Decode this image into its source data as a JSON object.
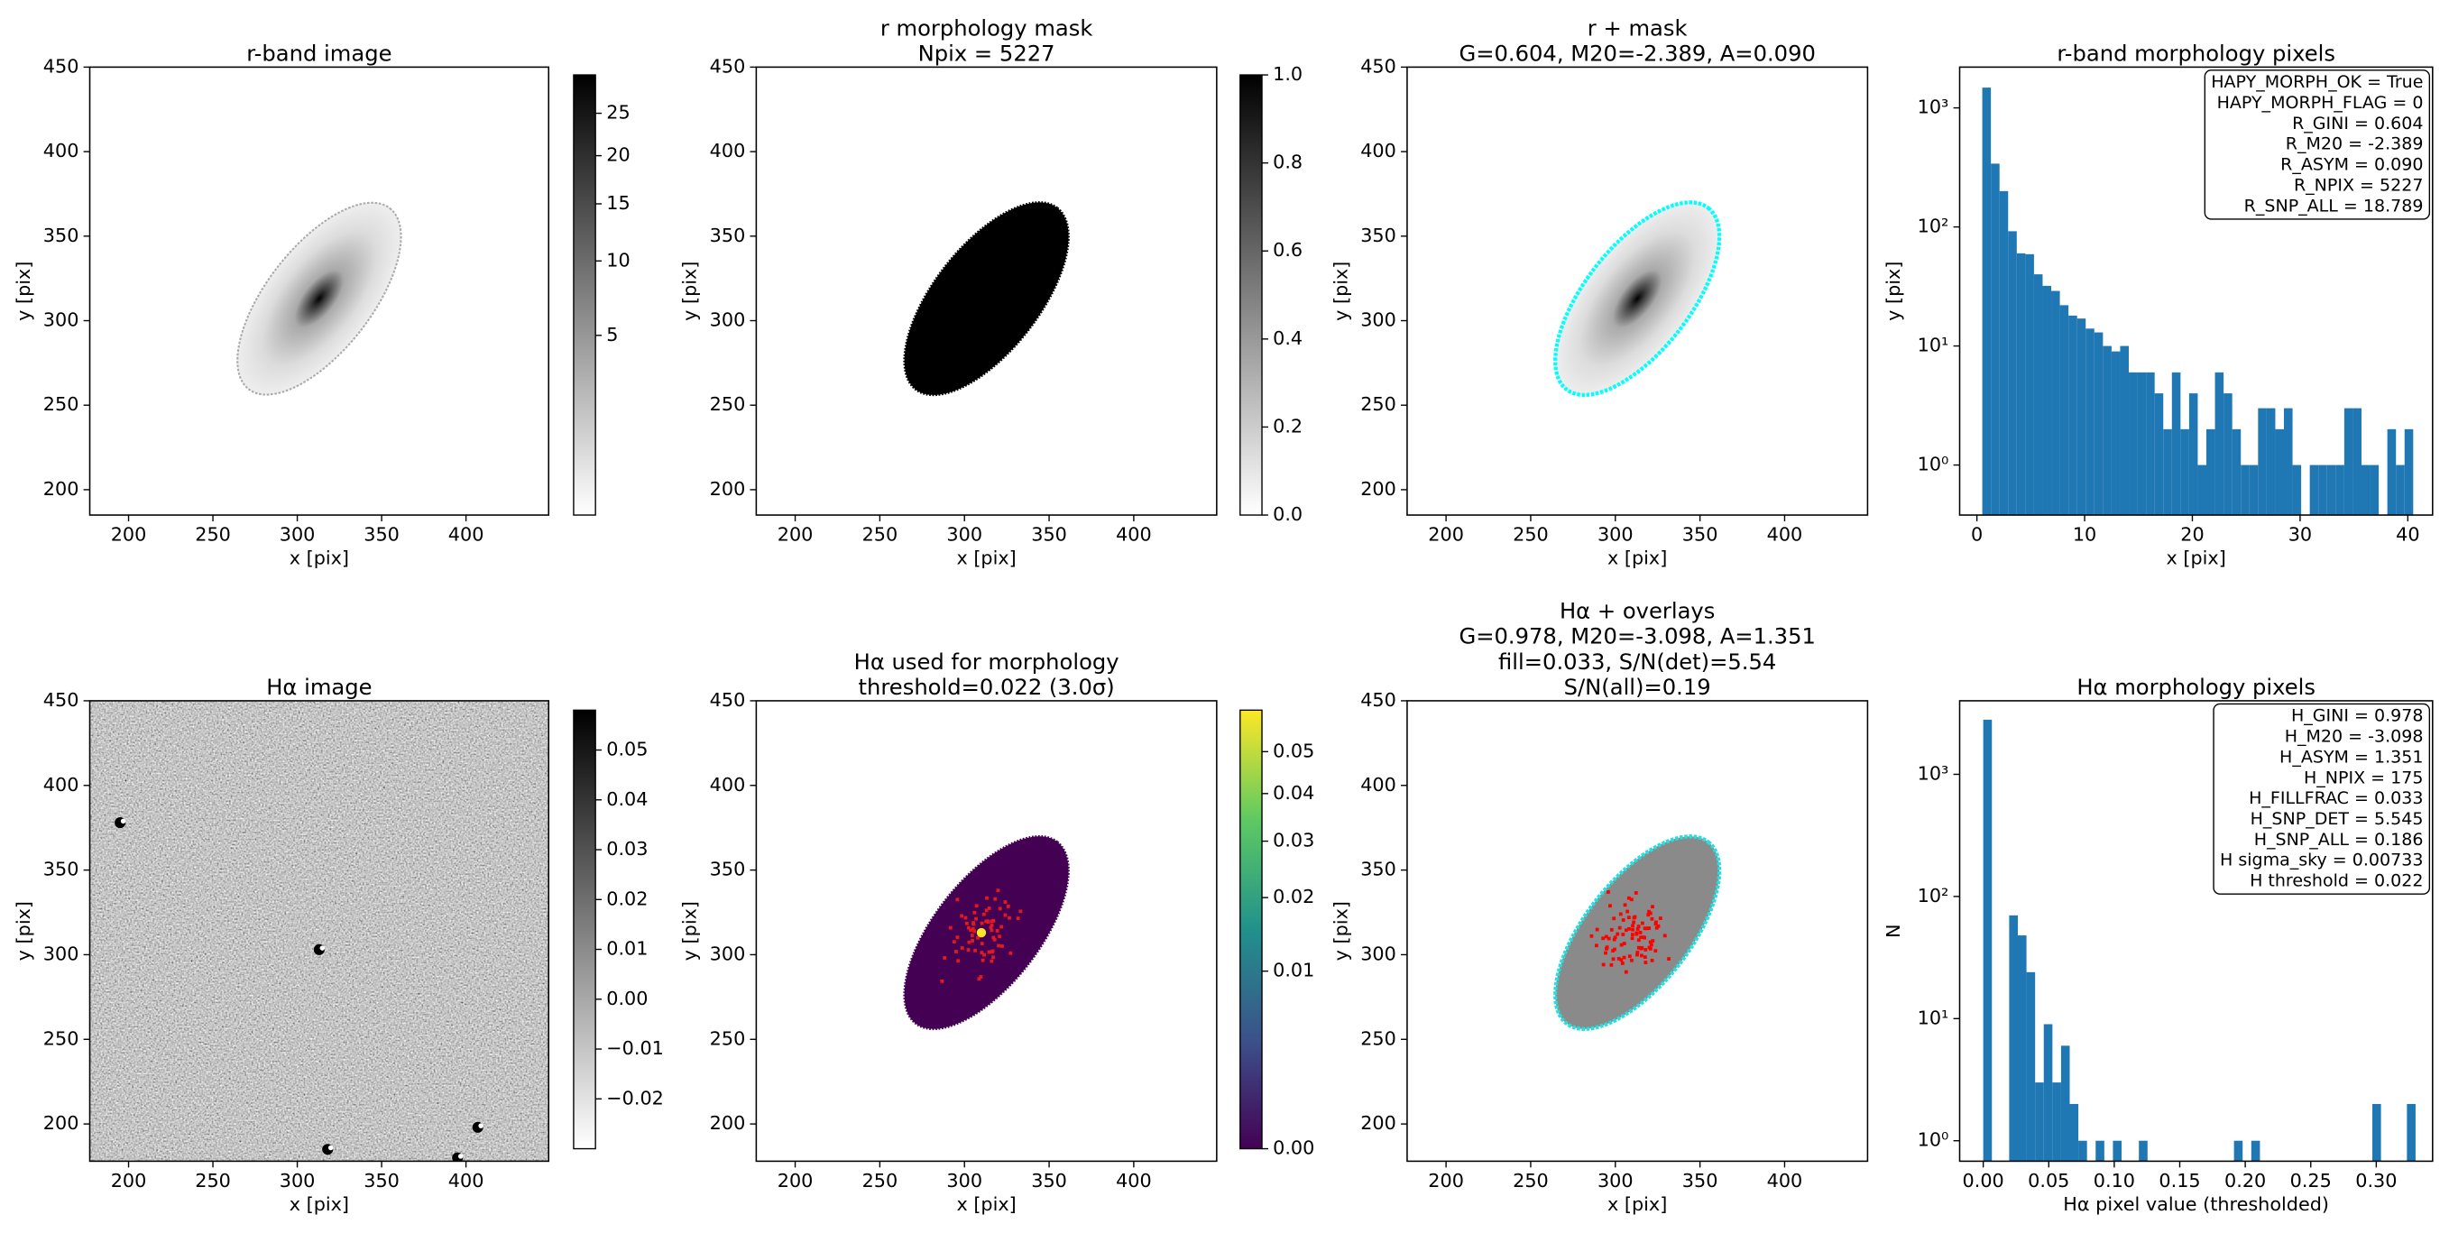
{
  "chart_data": [
    {
      "type": "image",
      "title": [
        "r-band image"
      ],
      "xlabel": "x [pix]",
      "ylabel": "y [pix]",
      "xlim": [
        177,
        449
      ],
      "ylim": [
        185,
        450
      ],
      "xticks": [
        200,
        250,
        300,
        350,
        400
      ],
      "yticks": [
        200,
        250,
        300,
        350,
        400,
        450
      ],
      "colorbar": {
        "cmap": "gray_r",
        "scale": "sqrt",
        "clim": [
          0,
          30
        ],
        "ticks": [
          5,
          10,
          15,
          20,
          25
        ]
      }
    },
    {
      "type": "image",
      "title": [
        "r morphology mask",
        "Npix = 5227"
      ],
      "xlabel": "x [pix]",
      "ylabel": "y [pix]",
      "xlim": [
        177,
        449
      ],
      "ylim": [
        185,
        450
      ],
      "xticks": [
        200,
        250,
        300,
        350,
        400
      ],
      "yticks": [
        200,
        250,
        300,
        350,
        400,
        450
      ],
      "colorbar": {
        "cmap": "gray_r",
        "scale": "linear",
        "clim": [
          0,
          1
        ],
        "ticks": [
          {
            "value": 0,
            "label": "0.0"
          },
          {
            "value": 0.2,
            "label": "0.2"
          },
          {
            "value": 0.4,
            "label": "0.4"
          },
          {
            "value": 0.6,
            "label": "0.6"
          },
          {
            "value": 0.8,
            "label": "0.8"
          },
          {
            "value": 1,
            "label": "1.0"
          }
        ]
      }
    },
    {
      "type": "image",
      "title": [
        "r + mask",
        "G=0.604, M20=-2.389, A=0.090"
      ],
      "xlabel": "x [pix]",
      "ylabel": "y [pix]",
      "xlim": [
        177,
        449
      ],
      "ylim": [
        185,
        450
      ],
      "xticks": [
        200,
        250,
        300,
        350,
        400
      ],
      "yticks": [
        200,
        250,
        300,
        350,
        400,
        450
      ]
    },
    {
      "type": "histogram",
      "title": [
        "r-band morphology pixels"
      ],
      "xlabel": "x [pix]",
      "ylabel": "y [pix]",
      "xlim": [
        -1.6,
        42.3
      ],
      "ylim": [
        0.38,
        2200
      ],
      "log_y": true,
      "color": "#1f77b4",
      "xticks": [
        0,
        10,
        20,
        30,
        40
      ],
      "yticks": [
        {
          "value": 1,
          "label": "10⁰"
        },
        {
          "value": 10,
          "label": "10¹"
        },
        {
          "value": 100,
          "label": "10²"
        },
        {
          "value": 1000,
          "label": "10³"
        }
      ],
      "bins": [
        0.5,
        1.3,
        2.1,
        2.9,
        3.7,
        4.5,
        5.3,
        6.1,
        6.9,
        7.7,
        8.5,
        9.3,
        10.1,
        10.9,
        11.7,
        12.5,
        13.3,
        14.1,
        14.9,
        15.7,
        16.5,
        17.3,
        18.1,
        18.9,
        19.7,
        20.5,
        21.3,
        22.1,
        22.9,
        23.7,
        24.5,
        25.3,
        26.1,
        26.9,
        27.7,
        28.5,
        29.3,
        30.1,
        30.9,
        31.7,
        32.5,
        33.3,
        34.1,
        34.9,
        35.7,
        36.5,
        37.3,
        38.1,
        38.9,
        39.7,
        40.5
      ],
      "counts": [
        1480,
        340,
        200,
        92,
        60,
        59,
        40,
        32,
        29,
        22,
        18,
        17,
        14,
        13,
        10,
        9,
        10,
        6,
        6,
        6,
        4,
        2,
        6,
        2,
        4,
        1,
        2,
        6,
        4,
        2,
        1,
        1,
        3,
        3,
        2,
        3,
        1,
        0,
        1,
        1,
        1,
        1,
        3,
        3,
        1,
        1,
        0,
        2,
        1,
        2
      ],
      "annotation": [
        "HAPY_MORPH_OK = True",
        "HAPY_MORPH_FLAG = 0",
        "R_GINI = 0.604",
        "R_M20 = -2.389",
        "R_ASYM = 0.090",
        "R_NPIX = 5227",
        "R_SNP_ALL = 18.789"
      ]
    },
    {
      "type": "image",
      "title": [
        "Hα image"
      ],
      "xlabel": "x [pix]",
      "ylabel": "y [pix]",
      "xlim": [
        177,
        449
      ],
      "ylim": [
        178,
        450
      ],
      "xticks": [
        200,
        250,
        300,
        350,
        400
      ],
      "yticks": [
        200,
        250,
        300,
        350,
        400,
        450
      ],
      "colorbar": {
        "cmap": "gray_r",
        "scale": "linear",
        "clim": [
          -0.03,
          0.058
        ],
        "ticks": [
          {
            "value": -0.02,
            "label": "−0.02"
          },
          {
            "value": -0.01,
            "label": "−0.01"
          },
          {
            "value": 0,
            "label": "0.00"
          },
          0.01,
          0.02,
          0.03,
          0.04,
          0.05
        ]
      }
    },
    {
      "type": "image",
      "title": [
        "Hα used for morphology",
        "threshold=0.022 (3.0σ)"
      ],
      "xlabel": "x [pix]",
      "ylabel": "y [pix]",
      "xlim": [
        177,
        449
      ],
      "ylim": [
        178,
        450
      ],
      "xticks": [
        200,
        250,
        300,
        350,
        400
      ],
      "yticks": [
        200,
        250,
        300,
        350,
        400,
        450
      ],
      "colorbar": {
        "cmap": "viridis",
        "scale": "sqrt",
        "clim": [
          0,
          0.061
        ],
        "ticks": [
          {
            "value": 0,
            "label": "0.00"
          },
          0.01,
          0.02,
          0.03,
          0.04,
          0.05
        ]
      }
    },
    {
      "type": "image",
      "title": [
        "Hα + overlays",
        "G=0.978, M20=-3.098, A=1.351",
        "fill=0.033, S/N(det)=5.54",
        "S/N(all)=0.19"
      ],
      "xlabel": "x [pix]",
      "ylabel": "y [pix]",
      "xlim": [
        177,
        449
      ],
      "ylim": [
        178,
        450
      ],
      "xticks": [
        200,
        250,
        300,
        350,
        400
      ],
      "yticks": [
        200,
        250,
        300,
        350,
        400,
        450
      ]
    },
    {
      "type": "histogram",
      "title": [
        "Hα morphology pixels"
      ],
      "xlabel": "Hα pixel value (thresholded)",
      "ylabel": "N",
      "xlim": [
        -0.018,
        0.343
      ],
      "ylim": [
        0.68,
        4000
      ],
      "log_y": true,
      "color": "#1f77b4",
      "xticks": [
        {
          "value": 0,
          "label": "0.00"
        },
        0.05,
        {
          "value": 0.1,
          "label": "0.10"
        },
        0.15,
        {
          "value": 0.2,
          "label": "0.20"
        },
        0.25,
        {
          "value": 0.3,
          "label": "0.30"
        }
      ],
      "yticks": [
        {
          "value": 1,
          "label": "10⁰"
        },
        {
          "value": 10,
          "label": "10¹"
        },
        {
          "value": 100,
          "label": "10²"
        },
        {
          "value": 1000,
          "label": "10³"
        }
      ],
      "bins": [
        0,
        0.0066,
        0.0132,
        0.0198,
        0.0264,
        0.033,
        0.0396,
        0.0462,
        0.0528,
        0.0594,
        0.066,
        0.0726,
        0.0792,
        0.0858,
        0.0924,
        0.099,
        0.1056,
        0.1122,
        0.1188,
        0.1254,
        0.132,
        0.1386,
        0.1452,
        0.1518,
        0.1584,
        0.165,
        0.1716,
        0.1782,
        0.1848,
        0.1914,
        0.198,
        0.2046,
        0.2112,
        0.2178,
        0.2244,
        0.231,
        0.2376,
        0.2442,
        0.2508,
        0.2574,
        0.264,
        0.2706,
        0.2772,
        0.2838,
        0.2904,
        0.297,
        0.3036,
        0.3102,
        0.3168,
        0.3234,
        0.33
      ],
      "counts": [
        2800,
        0,
        0,
        70,
        48,
        24,
        3,
        9,
        3,
        6,
        2,
        1,
        0,
        1,
        0,
        1,
        0,
        0,
        1,
        0,
        0,
        0,
        0,
        0,
        0,
        0,
        0,
        0,
        0,
        1,
        0,
        1,
        0,
        0,
        0,
        0,
        0,
        0,
        0,
        0,
        0,
        0,
        0,
        0,
        0,
        2,
        0,
        0,
        0,
        2
      ],
      "annotation": [
        "H_GINI = 0.978",
        "H_M20 = -3.098",
        "H_ASYM = 1.351",
        "H_NPIX = 175",
        "H_FILLFRAC = 0.033",
        "H_SNP_DET = 5.545",
        "H_SNP_ALL = 0.186",
        "H sigma_sky = 0.00733",
        "H threshold = 0.022"
      ]
    }
  ]
}
